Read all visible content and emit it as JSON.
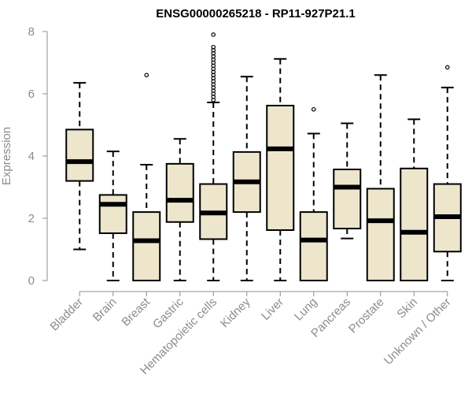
{
  "chart_data": {
    "type": "boxplot",
    "title": "ENSG00000265218 - RP11-927P21.1",
    "xlabel": "",
    "ylabel": "Expression",
    "ylim": [
      0,
      8
    ],
    "yticks": [
      0,
      2,
      4,
      6,
      8
    ],
    "box_color": "#ede6cc",
    "categories": [
      "Bladder",
      "Brain",
      "Breast",
      "Gastric",
      "Hematopoietic cells",
      "Kidney",
      "Liver",
      "Lung",
      "Pancreas",
      "Prostate",
      "Skin",
      "Unknown / Other"
    ],
    "boxes": [
      {
        "whisker_low": 1.0,
        "q1": 3.2,
        "median": 3.82,
        "q3": 4.85,
        "whisker_high": 6.35,
        "outliers": []
      },
      {
        "whisker_low": 0.0,
        "q1": 1.52,
        "median": 2.45,
        "q3": 2.75,
        "whisker_high": 4.15,
        "outliers": []
      },
      {
        "whisker_low": 0.0,
        "q1": 0.0,
        "median": 1.28,
        "q3": 2.2,
        "whisker_high": 3.72,
        "outliers": [
          6.6
        ]
      },
      {
        "whisker_low": 0.0,
        "q1": 1.88,
        "median": 2.58,
        "q3": 3.75,
        "whisker_high": 4.55,
        "outliers": []
      },
      {
        "whisker_low": 0.0,
        "q1": 1.33,
        "median": 2.17,
        "q3": 3.1,
        "whisker_high": 5.72,
        "outliers": [
          5.8,
          5.9,
          6.0,
          6.1,
          6.2,
          6.3,
          6.4,
          6.5,
          6.6,
          6.7,
          6.8,
          6.9,
          7.0,
          7.1,
          7.2,
          7.3,
          7.4,
          7.5,
          7.9
        ]
      },
      {
        "whisker_low": 0.0,
        "q1": 2.2,
        "median": 3.17,
        "q3": 4.13,
        "whisker_high": 6.55,
        "outliers": []
      },
      {
        "whisker_low": 0.0,
        "q1": 1.62,
        "median": 4.23,
        "q3": 5.62,
        "whisker_high": 7.12,
        "outliers": []
      },
      {
        "whisker_low": 0.0,
        "q1": 0.0,
        "median": 1.3,
        "q3": 2.2,
        "whisker_high": 4.72,
        "outliers": [
          5.5
        ]
      },
      {
        "whisker_low": 1.35,
        "q1": 1.67,
        "median": 3.0,
        "q3": 3.57,
        "whisker_high": 5.05,
        "outliers": []
      },
      {
        "whisker_low": 0.0,
        "q1": 0.0,
        "median": 1.92,
        "q3": 2.95,
        "whisker_high": 6.6,
        "outliers": []
      },
      {
        "whisker_low": 0.0,
        "q1": 0.0,
        "median": 1.55,
        "q3": 3.6,
        "whisker_high": 5.18,
        "outliers": []
      },
      {
        "whisker_low": 0.0,
        "q1": 0.93,
        "median": 2.05,
        "q3": 3.1,
        "whisker_high": 6.2,
        "outliers": [
          6.85
        ]
      }
    ]
  }
}
